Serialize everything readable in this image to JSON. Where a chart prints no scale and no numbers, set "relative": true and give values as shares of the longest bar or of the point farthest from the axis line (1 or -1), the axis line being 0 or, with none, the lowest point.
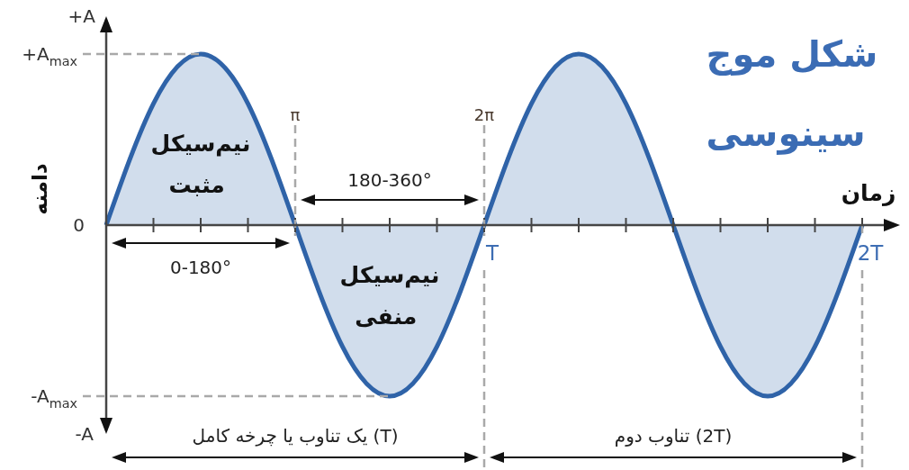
{
  "chart_data": {
    "type": "area",
    "title": "شکل موج سینوسی",
    "xlabel": "زمان",
    "ylabel": "دامنه",
    "relative": true,
    "categories": [
      null,
      null,
      null,
      null,
      null,
      null,
      null,
      null,
      "T",
      null,
      null,
      null,
      null,
      null,
      null,
      null,
      "2T"
    ],
    "values": [
      0,
      0.71,
      1,
      0.71,
      0,
      -0.71,
      -1,
      -0.71,
      0,
      0.71,
      1,
      0.71,
      0,
      -0.71,
      -1,
      -0.71,
      0
    ],
    "color": "#2f63a8",
    "annotations": [
      "π",
      "2π",
      "نیم‌سیکل مثبت",
      "نیم‌سیکل منفی",
      "0-180°",
      "180-360°",
      "(T) یک تناوب یا چرخه کامل",
      "(2T) تناوب دوم",
      "0",
      "+A",
      "-A",
      "+A$_{max}$",
      "-A$_{max}$"
    ]
  }
}
